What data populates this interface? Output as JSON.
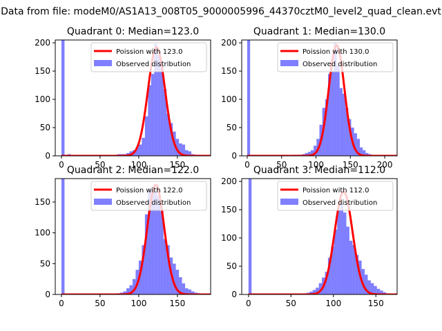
{
  "suptitle": "Data from file: modeM0/AS1A13_008T05_9000005996_44370cztM0_level2_quad_clean.evt",
  "chart_data": [
    {
      "type": "histogram",
      "title": "Quadrant 0: Median=123.0",
      "median": 123.0,
      "xlim": [
        -8,
        193
      ],
      "ylim": [
        0,
        205
      ],
      "xticks": [
        0,
        50,
        100,
        150
      ],
      "yticks": [
        0,
        50,
        100,
        150,
        200
      ],
      "legend": {
        "position": "upper-right",
        "entries": [
          "Poission with 123.0",
          "Observed distribution"
        ]
      },
      "bin_width": 4,
      "bins": [
        [
          0,
          205
        ],
        [
          4,
          1
        ],
        [
          8,
          3
        ],
        [
          12,
          1
        ],
        [
          16,
          1
        ],
        [
          20,
          1
        ],
        [
          24,
          1
        ],
        [
          28,
          1
        ],
        [
          32,
          1
        ],
        [
          36,
          1
        ],
        [
          40,
          1
        ],
        [
          44,
          1
        ],
        [
          48,
          1
        ],
        [
          52,
          1
        ],
        [
          56,
          1
        ],
        [
          60,
          1
        ],
        [
          64,
          1
        ],
        [
          68,
          1
        ],
        [
          72,
          3
        ],
        [
          76,
          3
        ],
        [
          80,
          3
        ],
        [
          84,
          5
        ],
        [
          88,
          8
        ],
        [
          92,
          10
        ],
        [
          96,
          15
        ],
        [
          100,
          20
        ],
        [
          104,
          32
        ],
        [
          108,
          70
        ],
        [
          112,
          125
        ],
        [
          116,
          145
        ],
        [
          120,
          198
        ],
        [
          124,
          178
        ],
        [
          128,
          168
        ],
        [
          132,
          118
        ],
        [
          136,
          75
        ],
        [
          140,
          58
        ],
        [
          144,
          43
        ],
        [
          148,
          30
        ],
        [
          152,
          22
        ],
        [
          156,
          20
        ],
        [
          160,
          10
        ],
        [
          164,
          8
        ],
        [
          168,
          3
        ],
        [
          172,
          2
        ],
        [
          176,
          2
        ],
        [
          180,
          1
        ]
      ],
      "poisson_peak": 192
    },
    {
      "type": "histogram",
      "title": "Quadrant 1: Median=130.0",
      "median": 130.0,
      "xlim": [
        -8,
        218
      ],
      "ylim": [
        0,
        205
      ],
      "xticks": [
        0,
        50,
        100,
        150,
        200
      ],
      "yticks": [
        0,
        50,
        100,
        150,
        200
      ],
      "legend": {
        "position": "upper-right",
        "entries": [
          "Poission with 130.0",
          "Observed distribution"
        ]
      },
      "bin_width": 4.2,
      "bins": [
        [
          0,
          205
        ],
        [
          4.2,
          1
        ],
        [
          8.4,
          1
        ],
        [
          12.6,
          1
        ],
        [
          16.8,
          1
        ],
        [
          21,
          1
        ],
        [
          25.2,
          1
        ],
        [
          29.4,
          1
        ],
        [
          33.6,
          1
        ],
        [
          37.8,
          1
        ],
        [
          42,
          1
        ],
        [
          46.2,
          1
        ],
        [
          50.4,
          1
        ],
        [
          54.6,
          1
        ],
        [
          58.8,
          1
        ],
        [
          63,
          1
        ],
        [
          67.2,
          2
        ],
        [
          71.4,
          2
        ],
        [
          75.6,
          2
        ],
        [
          79.8,
          3
        ],
        [
          84,
          5
        ],
        [
          88.2,
          7
        ],
        [
          92.4,
          10
        ],
        [
          96.6,
          18
        ],
        [
          100.8,
          30
        ],
        [
          105,
          55
        ],
        [
          109.2,
          85
        ],
        [
          113.4,
          100
        ],
        [
          117.6,
          145
        ],
        [
          121.8,
          150
        ],
        [
          126,
          200
        ],
        [
          130.2,
          160
        ],
        [
          134.4,
          120
        ],
        [
          138.6,
          110
        ],
        [
          142.8,
          85
        ],
        [
          147,
          65
        ],
        [
          151.2,
          50
        ],
        [
          155.4,
          40
        ],
        [
          159.6,
          30
        ],
        [
          163.8,
          15
        ],
        [
          168,
          10
        ],
        [
          172.2,
          5
        ],
        [
          176.4,
          3
        ],
        [
          180.6,
          1
        ],
        [
          184.8,
          1
        ],
        [
          189,
          1
        ],
        [
          193.2,
          1
        ],
        [
          197.4,
          1
        ],
        [
          201.6,
          1
        ]
      ],
      "poisson_peak": 196
    },
    {
      "type": "histogram",
      "title": "Quadrant 2: Median=122.0",
      "median": 122.0,
      "xlim": [
        -8,
        193
      ],
      "ylim": [
        0,
        188
      ],
      "xticks": [
        0,
        50,
        100,
        150
      ],
      "yticks": [
        0,
        50,
        100,
        150
      ],
      "legend": {
        "position": "upper-right",
        "entries": [
          "Poission with 122.0",
          "Observed distribution"
        ]
      },
      "bin_width": 4,
      "bins": [
        [
          0,
          188
        ],
        [
          4,
          1
        ],
        [
          8,
          1
        ],
        [
          12,
          1
        ],
        [
          16,
          1
        ],
        [
          20,
          1
        ],
        [
          24,
          1
        ],
        [
          28,
          1
        ],
        [
          32,
          1
        ],
        [
          36,
          1
        ],
        [
          40,
          1
        ],
        [
          44,
          1
        ],
        [
          48,
          1
        ],
        [
          52,
          1
        ],
        [
          56,
          1
        ],
        [
          60,
          1
        ],
        [
          64,
          1
        ],
        [
          68,
          1
        ],
        [
          72,
          2
        ],
        [
          76,
          3
        ],
        [
          80,
          5
        ],
        [
          84,
          10
        ],
        [
          88,
          15
        ],
        [
          92,
          25
        ],
        [
          96,
          40
        ],
        [
          100,
          55
        ],
        [
          104,
          80
        ],
        [
          108,
          130
        ],
        [
          112,
          170
        ],
        [
          116,
          175
        ],
        [
          120,
          165
        ],
        [
          124,
          160
        ],
        [
          128,
          135
        ],
        [
          132,
          90
        ],
        [
          136,
          80
        ],
        [
          140,
          60
        ],
        [
          144,
          50
        ],
        [
          148,
          40
        ],
        [
          152,
          28
        ],
        [
          156,
          18
        ],
        [
          160,
          10
        ],
        [
          164,
          8
        ],
        [
          168,
          5
        ],
        [
          172,
          3
        ],
        [
          176,
          2
        ],
        [
          180,
          1
        ]
      ],
      "poisson_peak": 178
    },
    {
      "type": "histogram",
      "title": "Quadrant 3: Median=112.0",
      "median": 112.0,
      "xlim": [
        -8,
        175
      ],
      "ylim": [
        0,
        205
      ],
      "xticks": [
        0,
        50,
        100,
        150
      ],
      "yticks": [
        0,
        50,
        100,
        150,
        200
      ],
      "legend": {
        "position": "upper-right",
        "entries": [
          "Poission with 112.0",
          "Observed distribution"
        ]
      },
      "bin_width": 3.6,
      "bins": [
        [
          0,
          205
        ],
        [
          3.6,
          1
        ],
        [
          7.2,
          1
        ],
        [
          10.8,
          1
        ],
        [
          14.4,
          1
        ],
        [
          18,
          1
        ],
        [
          21.6,
          1
        ],
        [
          25.2,
          1
        ],
        [
          28.8,
          1
        ],
        [
          32.4,
          1
        ],
        [
          36,
          1
        ],
        [
          39.6,
          1
        ],
        [
          43.2,
          1
        ],
        [
          46.8,
          1
        ],
        [
          50.4,
          1
        ],
        [
          54,
          1
        ],
        [
          57.6,
          1
        ],
        [
          61.2,
          1
        ],
        [
          64.8,
          2
        ],
        [
          68.4,
          3
        ],
        [
          72,
          5
        ],
        [
          75.6,
          8
        ],
        [
          79.2,
          12
        ],
        [
          82.8,
          20
        ],
        [
          86.4,
          30
        ],
        [
          90,
          40
        ],
        [
          93.6,
          65
        ],
        [
          97.2,
          85
        ],
        [
          100.8,
          115
        ],
        [
          104.4,
          150
        ],
        [
          108,
          160
        ],
        [
          111.6,
          145
        ],
        [
          115.2,
          120
        ],
        [
          118.8,
          95
        ],
        [
          122.4,
          88
        ],
        [
          126,
          70
        ],
        [
          129.6,
          60
        ],
        [
          133.2,
          45
        ],
        [
          136.8,
          35
        ],
        [
          140.4,
          25
        ],
        [
          144,
          20
        ],
        [
          147.6,
          15
        ],
        [
          151.2,
          10
        ],
        [
          154.8,
          7
        ],
        [
          158.4,
          4
        ],
        [
          162,
          2
        ]
      ],
      "poisson_peak": 182
    }
  ]
}
